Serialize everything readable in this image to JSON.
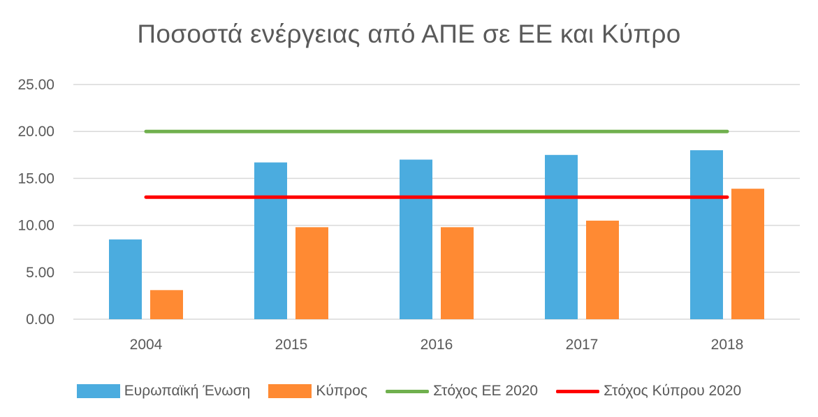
{
  "chart_data": {
    "type": "bar",
    "title": "Ποσοστά ενέργειας από ΑΠΕ σε ΕΕ και Κύπρο",
    "categories": [
      "2004",
      "2015",
      "2016",
      "2017",
      "2018"
    ],
    "y_ticks": [
      "0.00",
      "5.00",
      "10.00",
      "15.00",
      "20.00",
      "25.00"
    ],
    "ylim": [
      0,
      25
    ],
    "grid": true,
    "legend_position": "bottom",
    "series": [
      {
        "name": "Ευρωπαϊκή Ένωση",
        "kind": "bar",
        "color": "#4BACDF",
        "values": [
          8.5,
          16.7,
          17.0,
          17.5,
          18.0
        ]
      },
      {
        "name": "Κύπρος",
        "kind": "bar",
        "color": "#FF8A33",
        "values": [
          3.1,
          9.8,
          9.8,
          10.5,
          13.9
        ]
      },
      {
        "name": "Στόχος ΕΕ 2020",
        "kind": "line",
        "color": "#70B04E",
        "values": [
          20,
          20,
          20,
          20,
          20
        ]
      },
      {
        "name": "Στόχος Κύπρου 2020",
        "kind": "line",
        "color": "#FF0000",
        "values": [
          13,
          13,
          13,
          13,
          13
        ]
      }
    ]
  }
}
